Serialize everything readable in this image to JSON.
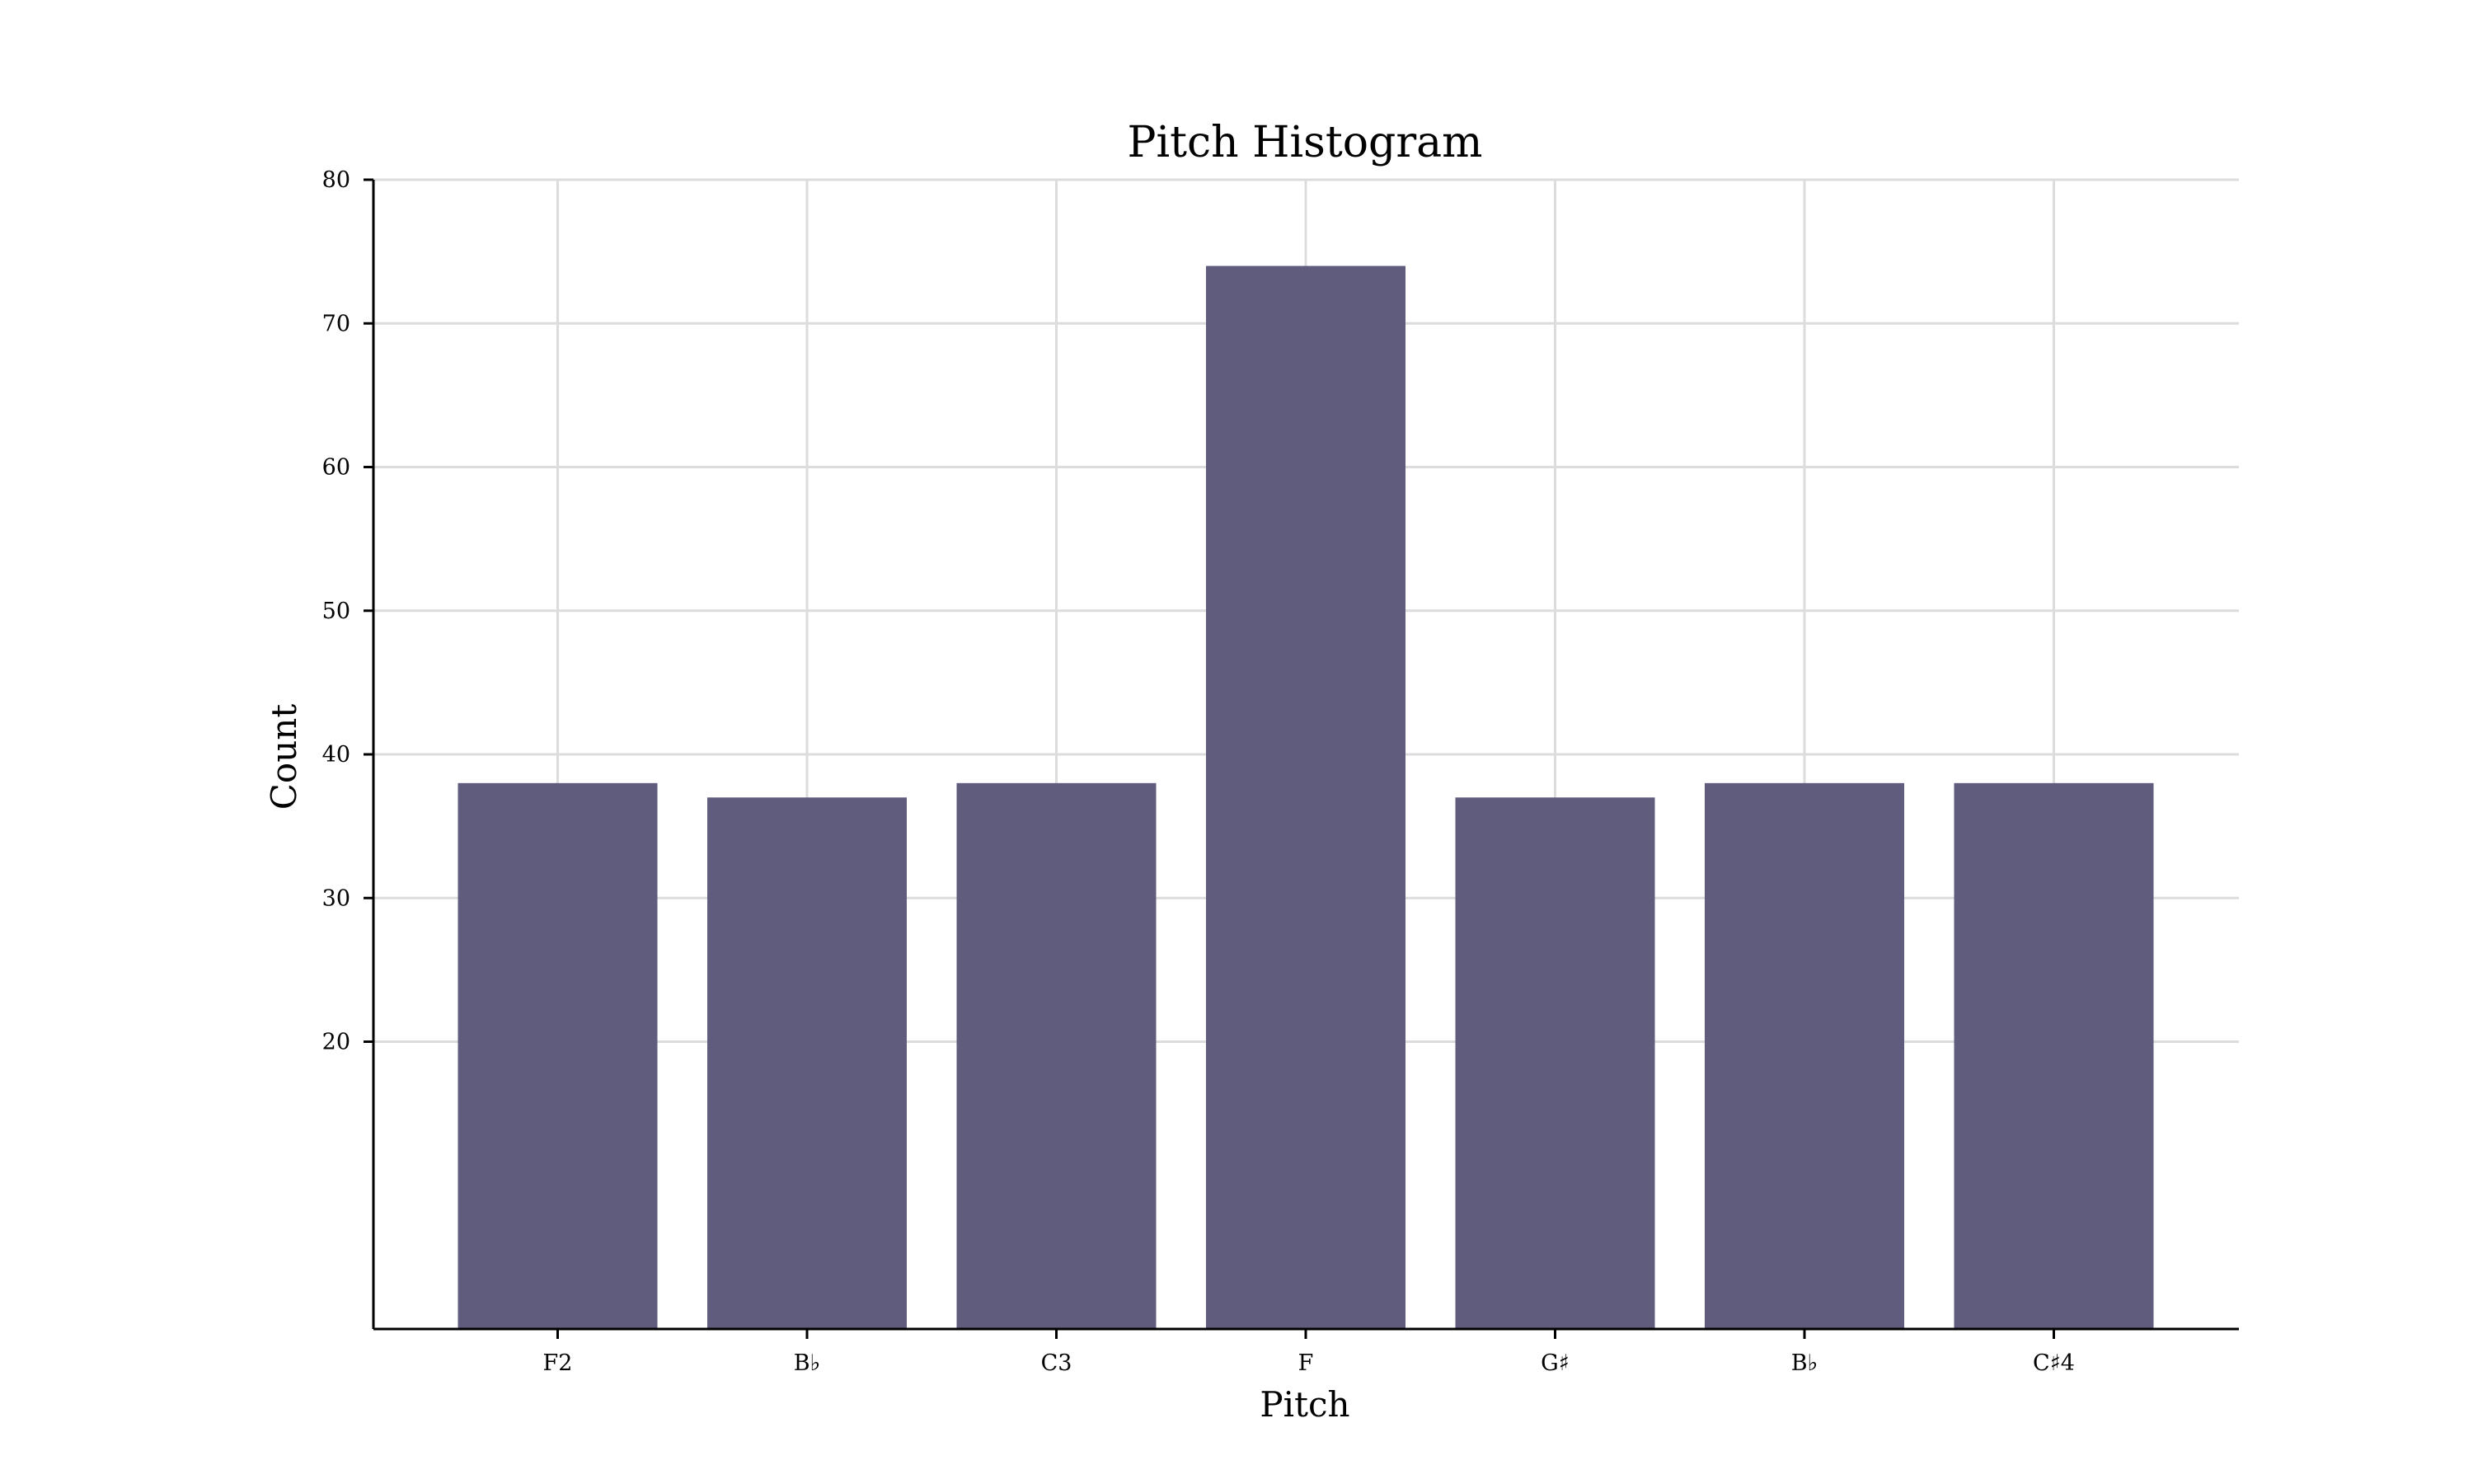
{
  "chart_data": {
    "type": "bar",
    "title": "Pitch Histogram",
    "xlabel": "Pitch",
    "ylabel": "Count",
    "categories": [
      "F2",
      "B♭",
      "C3",
      "F",
      "G♯",
      "B♭",
      "C♯4"
    ],
    "values": [
      38,
      37,
      38,
      74,
      37,
      38,
      38
    ],
    "ylim": [
      0,
      80
    ],
    "yticks": [
      20,
      30,
      40,
      50,
      60,
      70,
      80
    ],
    "grid": true,
    "bar_color": "#5f5c7d",
    "grid_color": "#dcdcdc"
  }
}
